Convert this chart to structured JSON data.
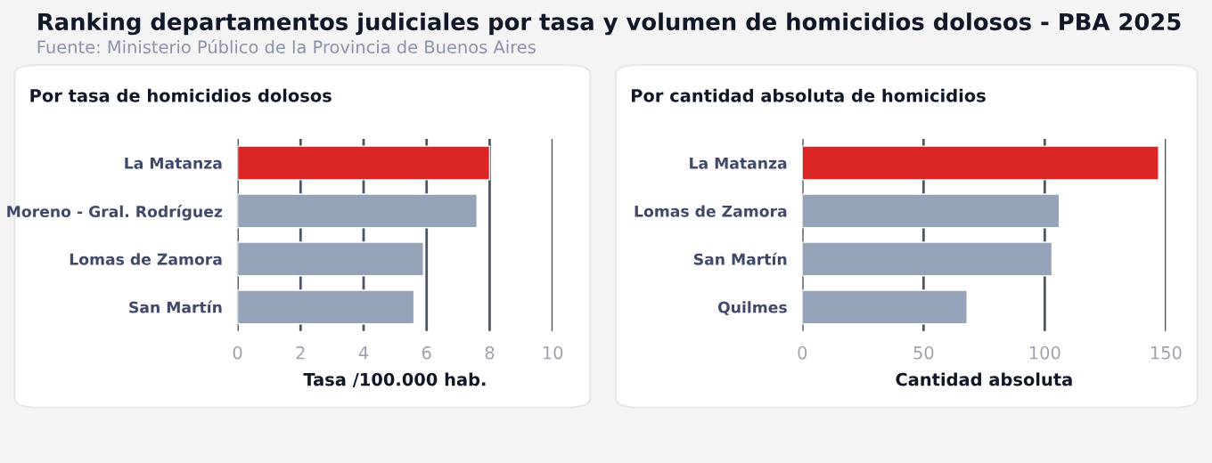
{
  "chart_data": [
    {
      "type": "bar",
      "orientation": "horizontal",
      "title": "Por tasa de homicidios dolosos",
      "xlabel": "Tasa /100.000 hab.",
      "annotations": [
        "Ranking departamentos judiciales por tasa y volumen de homicidios dolosos - PBA 2025",
        "Fuente: Ministerio Público de la Provincia de Buenos Aires"
      ],
      "categories": [
        "La Matanza",
        "Moreno - Gral. Rodríguez",
        "Lomas de Zamora",
        "San Martín"
      ],
      "values": [
        8.0,
        7.6,
        5.9,
        5.6
      ],
      "colors": [
        "#dc2626",
        "#94a3b8",
        "#94a3b8",
        "#94a3b8"
      ],
      "xlim": [
        0,
        10
      ],
      "xticks": [
        0,
        2,
        4,
        6,
        8,
        10
      ],
      "grid": "x"
    },
    {
      "type": "bar",
      "orientation": "horizontal",
      "title": "Por cantidad absoluta de homicidios",
      "xlabel": "Cantidad absoluta",
      "categories": [
        "La Matanza",
        "Lomas de Zamora",
        "San Martín",
        "Quilmes"
      ],
      "values": [
        147,
        106,
        103,
        68
      ],
      "colors": [
        "#dc2626",
        "#94a3b8",
        "#94a3b8",
        "#94a3b8"
      ],
      "xlim": [
        0,
        150
      ],
      "xticks": [
        0,
        50,
        100,
        150
      ],
      "grid": "x"
    }
  ]
}
